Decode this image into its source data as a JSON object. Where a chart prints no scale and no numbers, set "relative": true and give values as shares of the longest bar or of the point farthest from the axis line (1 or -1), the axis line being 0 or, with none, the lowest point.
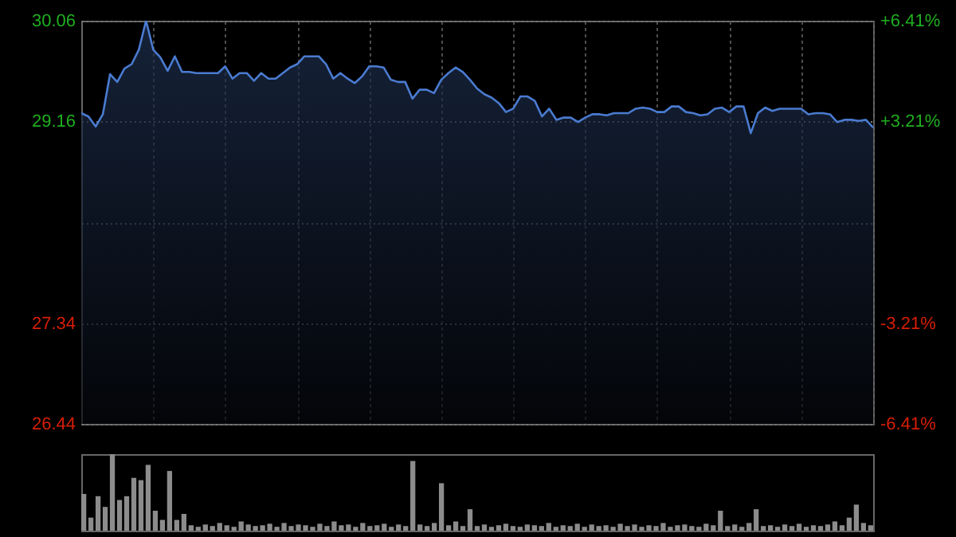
{
  "chart_data": [
    {
      "type": "area",
      "categories": [
        null,
        null,
        null,
        null,
        null,
        null,
        null,
        null,
        null,
        null,
        null,
        null,
        null,
        null,
        null,
        null,
        null,
        null,
        null,
        null,
        null,
        null,
        null,
        null,
        null,
        null,
        null,
        null,
        null,
        null,
        null,
        null,
        null,
        null,
        null,
        null,
        null,
        null,
        null,
        null,
        null,
        null,
        null,
        null,
        null,
        null,
        null,
        null,
        null,
        null,
        null,
        null,
        null,
        null,
        null,
        null,
        null,
        null,
        null,
        null,
        null,
        null,
        null,
        null,
        null,
        null,
        null,
        null,
        null,
        null,
        null,
        null,
        null,
        null,
        null,
        null,
        null,
        null,
        null,
        null,
        null,
        null,
        null,
        null,
        null,
        null,
        null,
        null,
        null,
        null,
        null,
        null,
        null,
        null,
        null,
        null,
        null,
        null,
        null,
        null,
        null,
        null,
        null,
        null,
        null,
        null,
        null,
        null,
        null,
        null,
        null
      ],
      "series": [
        {
          "color": "#4a7bd0",
          "values": [
            29.23,
            29.2,
            29.11,
            29.22,
            29.58,
            29.51,
            29.63,
            29.67,
            29.8,
            30.06,
            29.8,
            29.73,
            29.61,
            29.74,
            29.6,
            29.6,
            29.59,
            29.59,
            29.59,
            29.59,
            29.65,
            29.54,
            29.59,
            29.59,
            29.52,
            29.59,
            29.54,
            29.54,
            29.59,
            29.64,
            29.67,
            29.74,
            29.74,
            29.74,
            29.67,
            29.54,
            29.59,
            29.54,
            29.5,
            29.56,
            29.65,
            29.65,
            29.64,
            29.53,
            29.51,
            29.51,
            29.36,
            29.44,
            29.44,
            29.41,
            29.53,
            29.59,
            29.64,
            29.6,
            29.53,
            29.45,
            29.4,
            29.37,
            29.32,
            29.24,
            29.27,
            29.38,
            29.38,
            29.34,
            29.2,
            29.27,
            29.17,
            29.19,
            29.19,
            29.15,
            29.19,
            29.22,
            29.22,
            29.21,
            29.23,
            29.23,
            29.23,
            29.27,
            29.28,
            29.27,
            29.24,
            29.24,
            29.29,
            29.29,
            29.24,
            29.23,
            29.21,
            29.22,
            29.27,
            29.28,
            29.24,
            29.29,
            29.29,
            29.05,
            29.23,
            29.28,
            29.25,
            29.27,
            29.27,
            29.27,
            29.27,
            29.22,
            29.23,
            29.23,
            29.22,
            29.15,
            29.17,
            29.17,
            29.16,
            29.17,
            29.1
          ]
        }
      ],
      "ylim": [
        26.44,
        30.06
      ],
      "yticks": [
        30.06,
        29.16,
        {
          "value": 28.25,
          "label": null
        },
        27.34,
        26.44
      ],
      "y2lim": [
        -6.41,
        6.41
      ],
      "y2ticks": [
        {
          "value": 6.41,
          "label": "+6.41%"
        },
        {
          "value": 3.21,
          "label": "+3.21%"
        },
        {
          "value": -3.21,
          "label": "-3.21%"
        },
        {
          "value": -6.41,
          "label": "-6.41%"
        }
      ],
      "grid": true
    },
    {
      "type": "bar",
      "relative": true,
      "categories": [
        null,
        null,
        null,
        null,
        null,
        null,
        null,
        null,
        null,
        null,
        null,
        null,
        null,
        null,
        null,
        null,
        null,
        null,
        null,
        null,
        null,
        null,
        null,
        null,
        null,
        null,
        null,
        null,
        null,
        null,
        null,
        null,
        null,
        null,
        null,
        null,
        null,
        null,
        null,
        null,
        null,
        null,
        null,
        null,
        null,
        null,
        null,
        null,
        null,
        null,
        null,
        null,
        null,
        null,
        null,
        null,
        null,
        null,
        null,
        null,
        null,
        null,
        null,
        null,
        null,
        null,
        null,
        null,
        null,
        null,
        null,
        null,
        null,
        null,
        null,
        null,
        null,
        null,
        null,
        null,
        null,
        null,
        null,
        null,
        null,
        null,
        null,
        null,
        null,
        null,
        null,
        null,
        null,
        null,
        null,
        null,
        null,
        null,
        null,
        null,
        null,
        null,
        null,
        null,
        null,
        null,
        null,
        null,
        null,
        null,
        null
      ],
      "series": [
        {
          "color": "#8c8c8c",
          "values": [
            0.48,
            0.17,
            0.45,
            0.31,
            1,
            0.4,
            0.45,
            0.69,
            0.66,
            0.86,
            0.26,
            0.14,
            0.78,
            0.14,
            0.22,
            0.07,
            0.05,
            0.08,
            0.06,
            0.1,
            0.07,
            0.05,
            0.12,
            0.08,
            0.06,
            0.07,
            0.09,
            0.05,
            0.1,
            0.06,
            0.08,
            0.07,
            0.05,
            0.09,
            0.06,
            0.12,
            0.07,
            0.08,
            0.05,
            0.1,
            0.06,
            0.07,
            0.09,
            0.05,
            0.08,
            0.06,
            0.91,
            0.08,
            0.06,
            0.1,
            0.62,
            0.07,
            0.12,
            0.06,
            0.28,
            0.06,
            0.08,
            0.05,
            0.07,
            0.09,
            0.06,
            0.05,
            0.08,
            0.07,
            0.06,
            0.1,
            0.05,
            0.07,
            0.06,
            0.09,
            0.05,
            0.08,
            0.06,
            0.07,
            0.05,
            0.09,
            0.06,
            0.08,
            0.05,
            0.07,
            0.06,
            0.1,
            0.05,
            0.07,
            0.08,
            0.06,
            0.05,
            0.09,
            0.07,
            0.26,
            0.06,
            0.08,
            0.05,
            0.1,
            0.28,
            0.06,
            0.07,
            0.05,
            0.08,
            0.06,
            0.09,
            0.05,
            0.07,
            0.06,
            0.08,
            0.12,
            0.07,
            0.17,
            0.34,
            0.1,
            0.07
          ]
        }
      ]
    }
  ]
}
